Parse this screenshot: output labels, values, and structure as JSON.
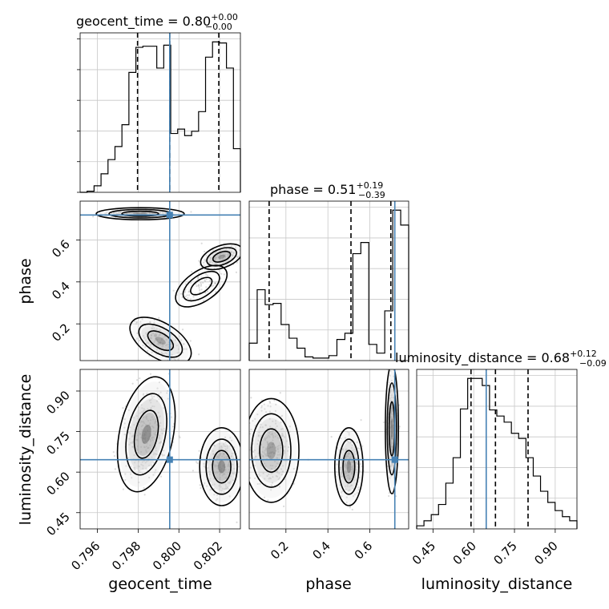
{
  "chart_data": {
    "type": "corner",
    "parameters": [
      "geocent_time",
      "phase",
      "luminosity_distance"
    ],
    "truths": {
      "geocent_time": 0.79955,
      "phase": 0.719,
      "luminosity_distance": 0.646
    },
    "titles": {
      "geocent_time": {
        "prefix": "geocent_time = ",
        "median": "0.80",
        "plus": "+0.00",
        "minus": "−0.00"
      },
      "phase": {
        "prefix": "phase = ",
        "median": "0.51",
        "plus": "+0.19",
        "minus": "−0.39"
      },
      "luminosity_distance": {
        "prefix": "luminosity_distance = ",
        "median": "0.68",
        "plus": "+0.12",
        "minus": "−0.09"
      }
    },
    "axis_labels": {
      "geocent_time": "geocent_time",
      "phase": "phase",
      "luminosity_distance": "luminosity_distance"
    },
    "ranges": {
      "geocent_time": [
        0.79515,
        0.80302
      ],
      "phase": [
        0.025,
        0.785
      ],
      "luminosity_distance": [
        0.39,
        0.98
      ]
    },
    "ticks": {
      "geocent_time": [
        "0.796",
        "0.798",
        "0.800",
        "0.802"
      ],
      "phase": [
        "0.2",
        "0.4",
        "0.6"
      ],
      "luminosity_distance": [
        "0.45",
        "0.60",
        "0.75",
        "0.90"
      ]
    },
    "quantiles": {
      "geocent_time": [
        0.79797,
        0.79955,
        0.80196
      ],
      "phase": [
        0.12,
        0.51,
        0.7
      ],
      "luminosity_distance": [
        0.59,
        0.68,
        0.8
      ]
    },
    "histograms": {
      "geocent_time": {
        "counts": [
          0,
          1,
          6,
          17,
          30,
          42,
          62,
          110,
          133,
          134,
          134,
          114,
          135,
          54,
          58,
          52,
          56,
          74,
          124,
          138,
          137,
          114,
          40
        ]
      },
      "phase": {
        "counts": [
          14,
          57,
          45,
          46,
          29,
          18,
          10,
          3,
          2,
          2,
          4,
          17,
          22,
          86,
          95,
          13,
          6,
          40,
          121,
          109
        ]
      },
      "luminosity_distance": {
        "counts": [
          3,
          8,
          14,
          24,
          45,
          70,
          118,
          148,
          148,
          141,
          117,
          111,
          105,
          94,
          89,
          70,
          52,
          37,
          26,
          18,
          12,
          8
        ]
      }
    },
    "grid": true
  }
}
